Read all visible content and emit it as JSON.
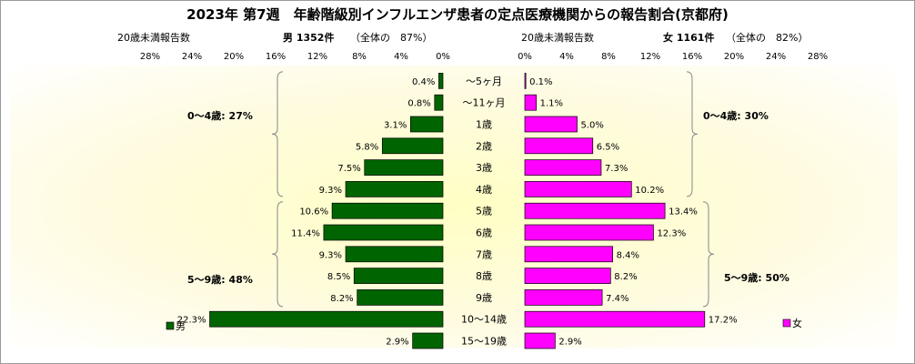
{
  "chart_data": {
    "type": "bar",
    "title": "2023年 第7週　年齢階級別インフルエンザ患者の定点医療機関からの報告割合(京都府)",
    "categories": [
      "～5ヶ月",
      "～11ヶ月",
      "1歳",
      "2歳",
      "3歳",
      "4歳",
      "5歳",
      "6歳",
      "7歳",
      "8歳",
      "9歳",
      "10～14歳",
      "15～19歳"
    ],
    "axis_unit": "%",
    "xlim": [
      0,
      28
    ],
    "ticks": [
      "0%",
      "4%",
      "8%",
      "12%",
      "16%",
      "20%",
      "24%",
      "28%"
    ],
    "tick_values": [
      0,
      4,
      8,
      12,
      16,
      20,
      24,
      28
    ],
    "grid": false,
    "legend_position": "bottom",
    "left_panel": {
      "heading_left": "20歳未満報告数",
      "heading_bold": "男 1352件",
      "heading_note": "（全体の　87%）",
      "series": {
        "name": "男",
        "color": "#006400",
        "values": [
          0.4,
          0.8,
          3.1,
          5.8,
          7.5,
          9.3,
          10.6,
          11.4,
          9.3,
          8.5,
          8.2,
          22.3,
          2.9
        ],
        "labels": [
          "0.4%",
          "0.8%",
          "3.1%",
          "5.8%",
          "7.5%",
          "9.3%",
          "10.6%",
          "11.4%",
          "9.3%",
          "8.5%",
          "8.2%",
          "22.3%",
          "2.9%"
        ]
      },
      "groups": [
        {
          "label": "0～4歳: 27%"
        },
        {
          "label": "5～9歳: 48%"
        }
      ]
    },
    "right_panel": {
      "heading_left": "20歳未満報告数",
      "heading_bold": "女 1161件",
      "heading_note": "（全体の　82%）",
      "series": {
        "name": "女",
        "color": "#ff00ff",
        "values": [
          0.1,
          1.1,
          5.0,
          6.5,
          7.3,
          10.2,
          13.4,
          12.3,
          8.4,
          8.2,
          7.4,
          17.2,
          2.9
        ],
        "labels": [
          "0.1%",
          "1.1%",
          "5.0%",
          "6.5%",
          "7.3%",
          "10.2%",
          "13.4%",
          "12.3%",
          "8.4%",
          "8.2%",
          "7.4%",
          "17.2%",
          "2.9%"
        ]
      },
      "groups": [
        {
          "label": "0～4歳: 30%"
        },
        {
          "label": "5～9歳: 50%"
        }
      ]
    }
  }
}
